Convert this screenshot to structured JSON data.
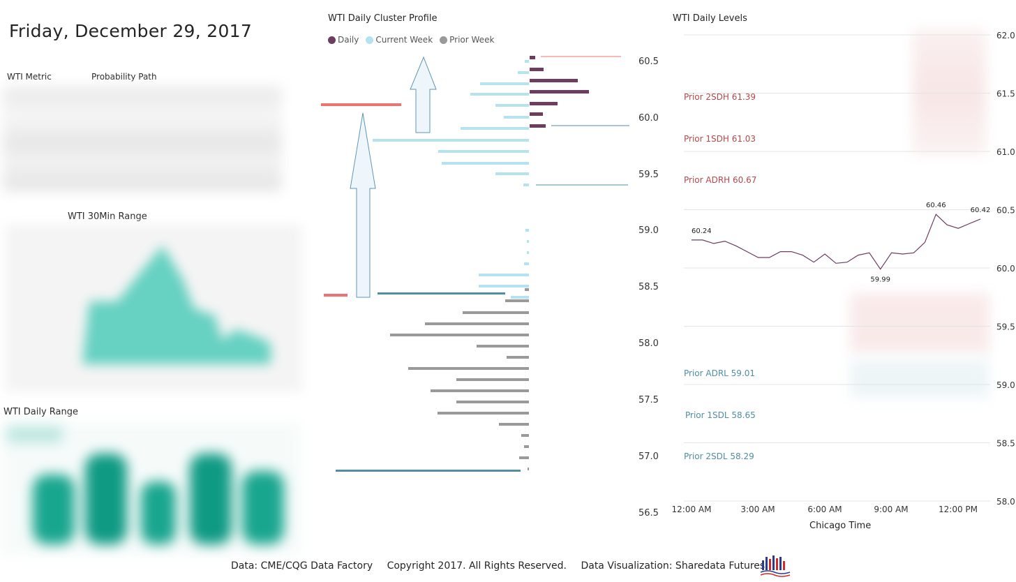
{
  "header": {
    "date": "Friday, December 29, 2017"
  },
  "metric_table": {
    "col1": "WTI Metric",
    "col2": "Probability Path"
  },
  "range30": {
    "title": "WTI 30Min Range"
  },
  "daily_range": {
    "title": "WTI Daily Range"
  },
  "cluster": {
    "title": "WTI Daily Cluster Profile",
    "legend": [
      {
        "label": "Daily",
        "color": "#6d3c5f"
      },
      {
        "label": "Current Week",
        "color": "#b3e3ee"
      },
      {
        "label": "Prior Week",
        "color": "#999999"
      }
    ],
    "y_ticks": [
      "60.5",
      "60.0",
      "59.5",
      "59.0",
      "58.5",
      "58.0",
      "57.5",
      "57.0",
      "56.5"
    ]
  },
  "levels": {
    "title": "WTI Daily Levels",
    "y_ticks": [
      "62.0",
      "61.5",
      "61.0",
      "60.5",
      "60.0",
      "59.5",
      "59.0",
      "58.5",
      "58.0"
    ],
    "x_ticks": [
      "12:00 AM",
      "3:00 AM",
      "6:00 AM",
      "9:00 AM",
      "12:00 PM"
    ],
    "xlabel": "Chicago Time",
    "labels": [
      {
        "text": "Prior 2SDH 61.39",
        "color": "#b5474a"
      },
      {
        "text": "Prior 1SDH 61.03",
        "color": "#b5474a"
      },
      {
        "text": "Prior ADRH 60.67",
        "color": "#b5474a"
      },
      {
        "text": "Prior ADRL 59.01",
        "color": "#4f8ea3"
      },
      {
        "text": "Prior 1SDL 58.65",
        "color": "#4f8ea3"
      },
      {
        "text": "Prior 2SDL 58.29",
        "color": "#4f8ea3"
      }
    ],
    "annotations": [
      "60.24",
      "60.46",
      "60.42",
      "59.99"
    ]
  },
  "chart_data": {
    "type": "line",
    "title": "WTI Daily Levels",
    "xlabel": "Chicago Time",
    "ylabel": "",
    "ylim": [
      58.0,
      62.0
    ],
    "x": [
      "12:00 AM",
      "",
      "",
      "",
      "",
      "",
      "3:00 AM",
      "",
      "",
      "",
      "",
      "6:00 AM",
      "",
      "",
      "",
      "",
      "",
      "9:00 AM",
      "",
      "",
      "",
      "",
      "",
      "12:00 PM",
      "",
      "",
      ""
    ],
    "series": [
      {
        "values": [
          60.24,
          60.24,
          60.21,
          60.23,
          60.19,
          60.14,
          60.09,
          60.09,
          60.14,
          60.14,
          60.11,
          60.05,
          60.12,
          60.04,
          60.05,
          60.11,
          60.13,
          59.99,
          60.13,
          60.12,
          60.13,
          60.22,
          60.46,
          60.37,
          60.34,
          60.38,
          60.42
        ]
      }
    ],
    "point_labels": [
      {
        "index": 0,
        "text": "60.24"
      },
      {
        "index": 17,
        "text": "59.99"
      },
      {
        "index": 22,
        "text": "60.46"
      },
      {
        "index": 26,
        "text": "60.42"
      }
    ],
    "grid": true
  },
  "footer": {
    "source": "Data: CME/CQG Data Factory",
    "copyright": "Copyright 2017. All Rights Reserved.",
    "viz": "Data Visualization: Sharedata Futures"
  }
}
